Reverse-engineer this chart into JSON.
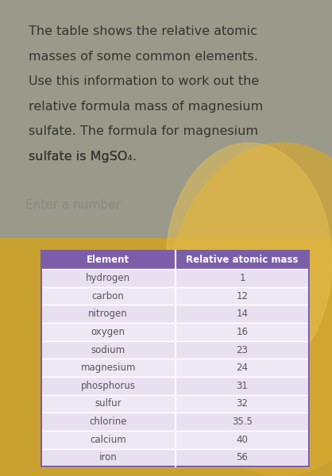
{
  "question_text_lines": [
    "The table shows the relative atomic",
    "masses of some common elements.",
    "Use this information to work out the",
    "relative formula mass of magnesium",
    "sulfate. The formula for magnesium",
    "sulfate is MgSO₄."
  ],
  "input_placeholder": "Enter a number",
  "table_header": [
    "Element",
    "Relative atomic mass"
  ],
  "table_rows": [
    [
      "hydrogen",
      "1"
    ],
    [
      "carbon",
      "12"
    ],
    [
      "nitrogen",
      "14"
    ],
    [
      "oxygen",
      "16"
    ],
    [
      "sodium",
      "23"
    ],
    [
      "magnesium",
      "24"
    ],
    [
      "phosphorus",
      "31"
    ],
    [
      "sulfur",
      "32"
    ],
    [
      "chlorine",
      "35.5"
    ],
    [
      "calcium",
      "40"
    ],
    [
      "iron",
      "56"
    ]
  ],
  "header_bg_color": "#7B5EA7",
  "header_text_color": "#FFFFFF",
  "row_bg_even": "#E8E0F0",
  "row_bg_odd": "#EEE8F5",
  "question_bg": "#F2F2F2",
  "input_bg": "#E8E8E8",
  "outer_bg_top": "#888888",
  "outer_bg_bottom": "#C8A030",
  "table_panel_bg": "#F5F2FA",
  "question_text_color": "#333333",
  "input_text_color": "#888888",
  "row_text_color": "#555555",
  "question_fontsize": 11.5,
  "table_fontsize": 8.5,
  "header_fontsize": 8.5
}
